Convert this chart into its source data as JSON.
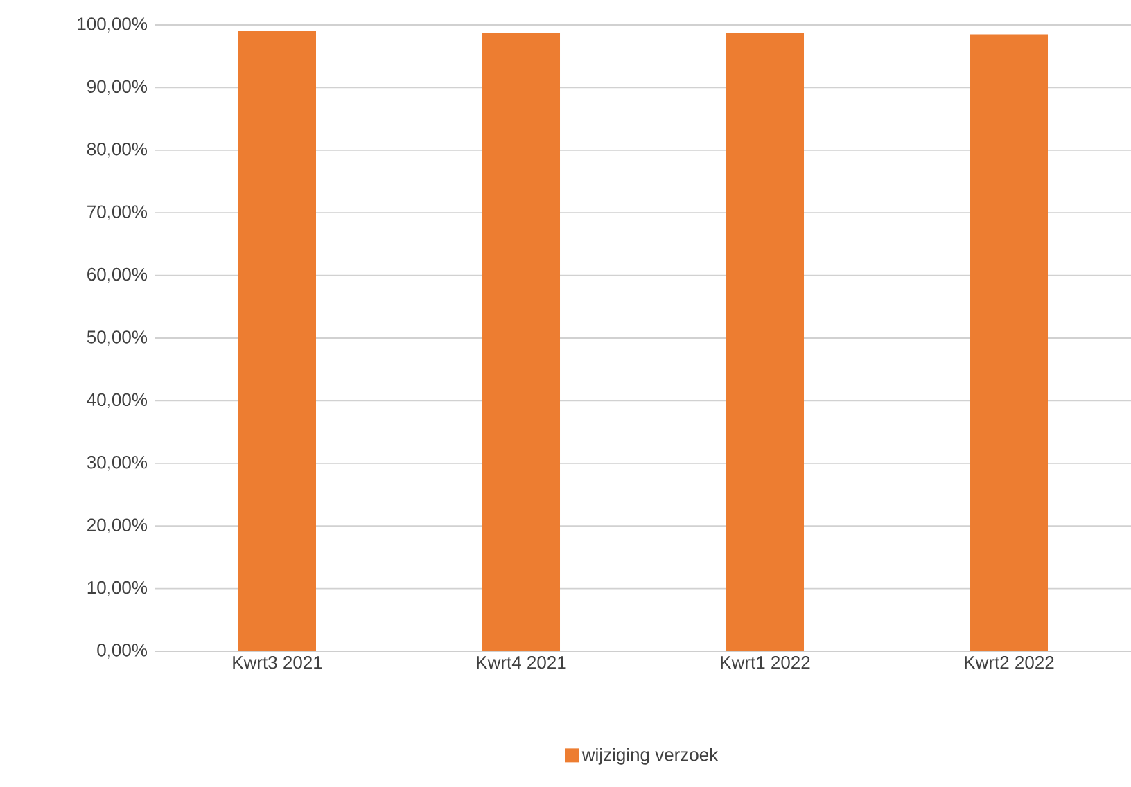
{
  "chart_data": {
    "type": "bar",
    "categories": [
      "Kwrt3 2021",
      "Kwrt4 2021",
      "Kwrt1 2022",
      "Kwrt2 2022"
    ],
    "series": [
      {
        "name": "wijziging verzoek",
        "color": "#ed7d31",
        "values": [
          99.0,
          98.7,
          98.7,
          98.5
        ]
      }
    ],
    "ylim": [
      0,
      100
    ],
    "yticks": [
      {
        "value": 0,
        "label": "0,00%"
      },
      {
        "value": 10,
        "label": "10,00%"
      },
      {
        "value": 20,
        "label": "20,00%"
      },
      {
        "value": 30,
        "label": "30,00%"
      },
      {
        "value": 40,
        "label": "40,00%"
      },
      {
        "value": 50,
        "label": "50,00%"
      },
      {
        "value": 60,
        "label": "60,00%"
      },
      {
        "value": 70,
        "label": "70,00%"
      },
      {
        "value": 80,
        "label": "80,00%"
      },
      {
        "value": 90,
        "label": "90,00%"
      },
      {
        "value": 100,
        "label": "100,00%"
      }
    ],
    "grid": "y",
    "legend": "bottom"
  }
}
